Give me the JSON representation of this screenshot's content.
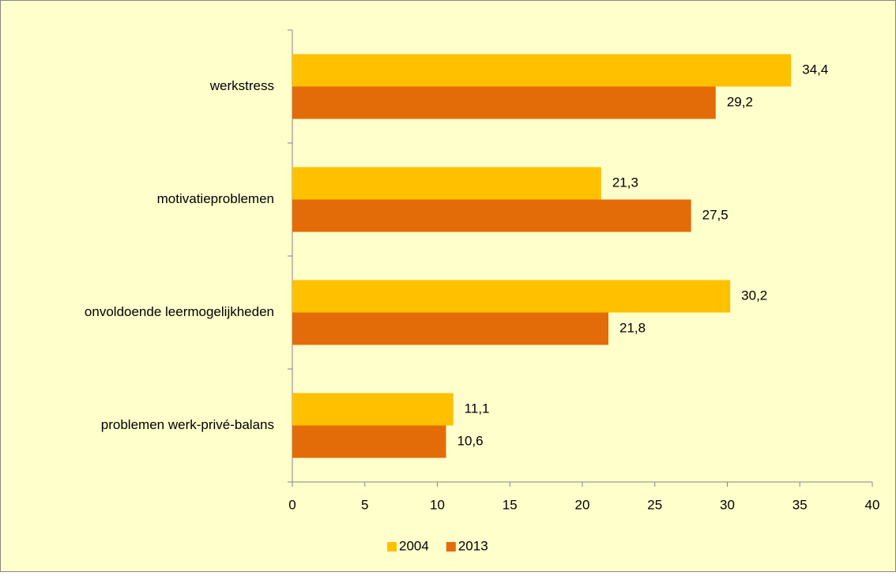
{
  "chart_data": {
    "type": "bar",
    "orientation": "horizontal",
    "categories": [
      "werkstress",
      "motivatieproblemen",
      "onvoldoende leermogelijkheden",
      "problemen werk-privé-balans"
    ],
    "series": [
      {
        "name": "2004",
        "color": "#ffc000",
        "values": [
          34.4,
          21.3,
          30.2,
          11.1
        ],
        "value_labels": [
          "34,4",
          "21,3",
          "30,2",
          "11,1"
        ]
      },
      {
        "name": "2013",
        "color": "#e36c09",
        "values": [
          29.2,
          27.5,
          21.8,
          10.6
        ],
        "value_labels": [
          "29,2",
          "27,5",
          "21,8",
          "10,6"
        ]
      }
    ],
    "xlim": [
      0,
      40
    ],
    "xticks": [
      0,
      5,
      10,
      15,
      20,
      25,
      30,
      35,
      40
    ],
    "legend": "bottom"
  }
}
